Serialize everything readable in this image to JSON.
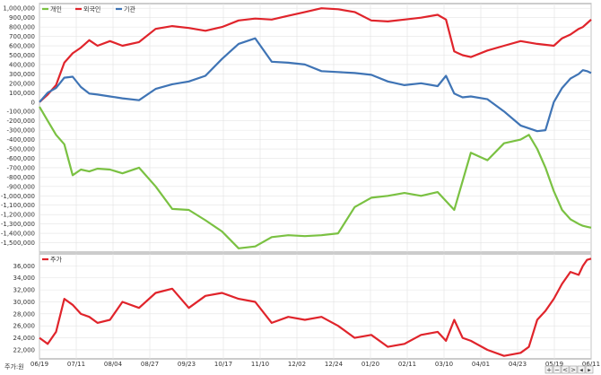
{
  "chart_data": [
    {
      "type": "line",
      "legend": [
        "개인",
        "외국인",
        "기관"
      ],
      "legend_position": "top-left",
      "ylim": [
        -1600000,
        1050000
      ],
      "yticks": [
        "1,000,000",
        "900,000",
        "800,000",
        "700,000",
        "600,000",
        "500,000",
        "400,000",
        "300,000",
        "200,000",
        "100,000",
        "0",
        "-100,000",
        "-200,000",
        "-300,000",
        "-400,000",
        "-500,000",
        "-600,000",
        "-700,000",
        "-800,000",
        "-900,000",
        "-1,000,000",
        "-1,100,000",
        "-1,200,000",
        "-1,300,000",
        "-1,400,000",
        "-1,500,000"
      ],
      "grid": true,
      "colors": {
        "개인": "#7ac142",
        "외국인": "#e0242b",
        "기관": "#3f74b5"
      },
      "series": [
        {
          "name": "개인",
          "x": [
            0,
            2,
            4,
            6,
            8,
            10,
            12,
            14,
            17,
            20,
            24,
            28,
            32,
            36,
            40,
            44,
            48,
            52,
            56,
            60,
            64,
            68,
            72,
            76,
            80,
            84,
            88,
            92,
            96,
            100,
            104,
            108,
            112,
            116,
            118,
            120,
            122,
            124,
            126,
            128,
            130,
            131,
            132,
            133
          ],
          "values": [
            -50000,
            -200000,
            -350000,
            -450000,
            -780000,
            -720000,
            -740000,
            -710000,
            -720000,
            -760000,
            -700000,
            -900000,
            -1140000,
            -1150000,
            -1260000,
            -1380000,
            -1560000,
            -1540000,
            -1440000,
            -1420000,
            -1430000,
            -1420000,
            -1400000,
            -1120000,
            -1020000,
            -1000000,
            -970000,
            -1000000,
            -960000,
            -1150000,
            -540000,
            -620000,
            -440000,
            -400000,
            -350000,
            -500000,
            -700000,
            -950000,
            -1150000,
            -1250000,
            -1300000,
            -1320000,
            -1330000,
            -1340000
          ]
        },
        {
          "name": "외국인",
          "x": [
            0,
            2,
            4,
            6,
            8,
            10,
            12,
            14,
            17,
            20,
            24,
            28,
            32,
            36,
            40,
            44,
            48,
            52,
            56,
            60,
            64,
            68,
            72,
            76,
            80,
            84,
            88,
            92,
            96,
            98,
            100,
            102,
            104,
            108,
            112,
            116,
            120,
            124,
            126,
            128,
            130,
            131,
            132,
            133
          ],
          "values": [
            0,
            80000,
            180000,
            420000,
            520000,
            580000,
            660000,
            600000,
            650000,
            600000,
            640000,
            780000,
            810000,
            790000,
            760000,
            800000,
            870000,
            890000,
            880000,
            920000,
            960000,
            1000000,
            990000,
            960000,
            870000,
            860000,
            880000,
            900000,
            930000,
            880000,
            540000,
            500000,
            480000,
            550000,
            600000,
            650000,
            620000,
            600000,
            680000,
            720000,
            780000,
            800000,
            840000,
            880000
          ]
        },
        {
          "name": "기관",
          "x": [
            0,
            2,
            4,
            6,
            8,
            10,
            12,
            14,
            17,
            20,
            24,
            28,
            32,
            36,
            40,
            44,
            48,
            52,
            56,
            60,
            64,
            68,
            72,
            76,
            80,
            84,
            88,
            92,
            96,
            98,
            100,
            102,
            104,
            108,
            112,
            116,
            120,
            122,
            124,
            126,
            128,
            130,
            131,
            132,
            133
          ],
          "values": [
            0,
            100000,
            150000,
            260000,
            270000,
            160000,
            90000,
            80000,
            60000,
            40000,
            20000,
            140000,
            190000,
            220000,
            280000,
            460000,
            620000,
            680000,
            430000,
            420000,
            400000,
            330000,
            320000,
            310000,
            290000,
            220000,
            180000,
            200000,
            170000,
            280000,
            90000,
            50000,
            60000,
            30000,
            -100000,
            -250000,
            -310000,
            -300000,
            0,
            150000,
            250000,
            300000,
            340000,
            330000,
            310000
          ]
        }
      ]
    },
    {
      "type": "line",
      "legend": [
        "주가"
      ],
      "legend_position": "top-left",
      "ylabel": "주가:원",
      "ylim": [
        20500,
        38000
      ],
      "yticks": [
        "36,000",
        "34,000",
        "32,000",
        "30,000",
        "28,000",
        "26,000",
        "24,000",
        "22,000"
      ],
      "grid": true,
      "colors": {
        "주가": "#e0242b"
      },
      "categories": [
        "06/19",
        "07/11",
        "08/04",
        "08/27",
        "09/23",
        "10/17",
        "11/10",
        "12/02",
        "12/24",
        "01/20",
        "02/11",
        "03/10",
        "04/01",
        "04/23",
        "05/19",
        "06/11"
      ],
      "series": [
        {
          "name": "주가",
          "x": [
            0,
            2,
            4,
            6,
            8,
            10,
            12,
            14,
            17,
            20,
            24,
            28,
            32,
            36,
            40,
            44,
            48,
            52,
            56,
            60,
            64,
            68,
            72,
            76,
            80,
            84,
            88,
            92,
            96,
            98,
            100,
            102,
            104,
            108,
            112,
            116,
            118,
            120,
            122,
            124,
            126,
            128,
            130,
            131,
            132,
            133
          ],
          "values": [
            24000,
            23000,
            25000,
            30500,
            29500,
            28000,
            27500,
            26500,
            27000,
            30000,
            29000,
            31500,
            32200,
            29000,
            31000,
            31500,
            30500,
            30000,
            26500,
            27500,
            27000,
            27500,
            26000,
            24000,
            24500,
            22500,
            23000,
            24500,
            25000,
            23500,
            27000,
            24000,
            23500,
            22000,
            21000,
            21500,
            22500,
            27000,
            28500,
            30500,
            33000,
            35000,
            34500,
            36000,
            37000,
            37200
          ]
        }
      ]
    }
  ]
}
